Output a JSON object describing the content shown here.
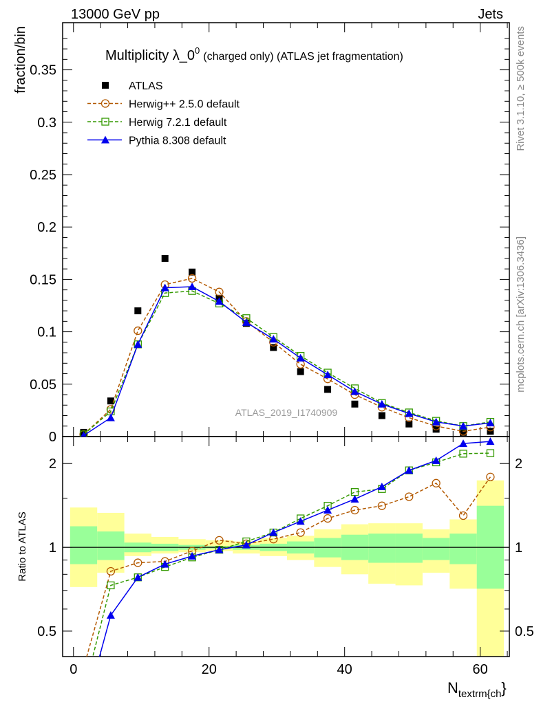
{
  "header": {
    "left": "13000 GeV pp",
    "right": "Jets"
  },
  "side": {
    "rivet": "Rivet 3.1.10, ≥ 500k events",
    "mcplots": "mcplots.cern.ch [arXiv:1306.3436]"
  },
  "watermark": "ATLAS_2019_I1740909",
  "colors": {
    "atlas": "#000000",
    "herwigpp": "#b35900",
    "herwig7": "#339900",
    "pythia": "#0000ee",
    "band_yellow": "#ffff99",
    "band_green": "#99ff99"
  },
  "chart_data": [
    {
      "type": "line",
      "title_main": "Multiplicity λ_0",
      "title_sup": "0",
      "title_rest": "(charged only) (ATLAS jet fragmentation)",
      "xlabel": "N",
      "xlabel_sub": "textrm{ch",
      "xlabel_tail": "}",
      "ylabel": "fraction/bin",
      "xlim": [
        -1.6,
        64.3
      ],
      "ylim": [
        0,
        0.395
      ],
      "yticks": [
        "0",
        "0.05",
        "0.1",
        "0.15",
        "0.2",
        "0.25",
        "0.3",
        "0.35"
      ],
      "xticks": [
        "0",
        "20",
        "40",
        "60"
      ],
      "legend_position": "top-left",
      "x": [
        1.5,
        5.5,
        9.5,
        13.5,
        17.5,
        21.5,
        25.5,
        29.5,
        33.5,
        37.5,
        41.5,
        45.5,
        49.5,
        53.5,
        57.5,
        61.5
      ],
      "series": [
        {
          "name": "ATLAS",
          "key": "atlas",
          "values": [
            0.004,
            0.034,
            0.12,
            0.17,
            0.157,
            0.132,
            0.108,
            0.085,
            0.062,
            0.045,
            0.031,
            0.02,
            0.012,
            0.007,
            0.004,
            0.005
          ]
        },
        {
          "name": "Herwig++ 2.5.0 default",
          "key": "herwigpp",
          "values": [
            0.002,
            0.026,
            0.101,
            0.145,
            0.151,
            0.138,
            0.11,
            0.09,
            0.069,
            0.055,
            0.04,
            0.028,
            0.018,
            0.01,
            0.005,
            0.009
          ]
        },
        {
          "name": "Herwig 7.2.1 default",
          "key": "herwig7",
          "values": [
            0.002,
            0.024,
            0.088,
            0.137,
            0.139,
            0.127,
            0.113,
            0.095,
            0.077,
            0.061,
            0.046,
            0.032,
            0.023,
            0.015,
            0.01,
            0.014
          ]
        },
        {
          "name": "Pythia 8.308 default",
          "key": "pythia",
          "values": [
            0.001,
            0.018,
            0.088,
            0.142,
            0.143,
            0.129,
            0.109,
            0.093,
            0.075,
            0.059,
            0.043,
            0.031,
            0.022,
            0.014,
            0.01,
            0.013
          ]
        }
      ]
    },
    {
      "type": "line",
      "ylabel": "Ratio to ATLAS",
      "yscale": "log",
      "ylim": [
        0.405,
        2.5
      ],
      "yticks": [
        "0.5",
        "1",
        "2"
      ],
      "x": [
        1.5,
        5.5,
        9.5,
        13.5,
        17.5,
        21.5,
        25.5,
        29.5,
        33.5,
        37.5,
        41.5,
        45.5,
        49.5,
        53.5,
        57.5,
        61.5
      ],
      "bands": {
        "yellow_lo": [
          0.72,
          0.81,
          0.93,
          0.95,
          0.96,
          0.97,
          0.95,
          0.93,
          0.9,
          0.85,
          0.8,
          0.74,
          0.73,
          0.81,
          0.71,
          0.4
        ],
        "yellow_hi": [
          1.39,
          1.33,
          1.12,
          1.09,
          1.07,
          1.06,
          1.05,
          1.08,
          1.1,
          1.16,
          1.21,
          1.22,
          1.22,
          1.16,
          1.26,
          1.74
        ],
        "green_lo": [
          0.87,
          0.9,
          0.96,
          0.97,
          0.98,
          0.99,
          0.98,
          0.97,
          0.95,
          0.92,
          0.9,
          0.88,
          0.88,
          0.9,
          0.87,
          0.71
        ],
        "green_hi": [
          1.19,
          1.14,
          1.04,
          1.03,
          1.02,
          1.01,
          1.02,
          1.03,
          1.05,
          1.08,
          1.11,
          1.12,
          1.12,
          1.08,
          1.12,
          1.41
        ]
      },
      "series": [
        {
          "name": "Herwig++ 2.5.0 default",
          "key": "herwigpp",
          "values": [
            0.37,
            0.82,
            0.88,
            0.89,
            0.97,
            1.06,
            1.03,
            1.07,
            1.13,
            1.27,
            1.36,
            1.41,
            1.52,
            1.7,
            1.3,
            1.79
          ]
        },
        {
          "name": "Herwig 7.2.1 default",
          "key": "herwig7",
          "values": [
            0.3,
            0.73,
            0.78,
            0.85,
            0.92,
            0.98,
            1.05,
            1.13,
            1.27,
            1.41,
            1.58,
            1.62,
            1.89,
            2.02,
            2.17,
            2.18
          ]
        },
        {
          "name": "Pythia 8.308 default",
          "key": "pythia",
          "values": [
            0.25,
            0.57,
            0.78,
            0.87,
            0.93,
            0.98,
            1.02,
            1.13,
            1.24,
            1.36,
            1.49,
            1.65,
            1.89,
            2.05,
            2.36,
            2.4
          ]
        }
      ]
    }
  ]
}
